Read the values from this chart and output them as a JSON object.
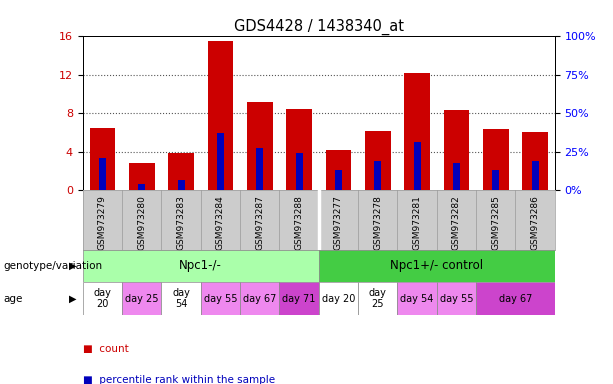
{
  "title": "GDS4428 / 1438340_at",
  "samples": [
    "GSM973279",
    "GSM973280",
    "GSM973283",
    "GSM973284",
    "GSM973287",
    "GSM973288",
    "GSM973277",
    "GSM973278",
    "GSM973281",
    "GSM973282",
    "GSM973285",
    "GSM973286"
  ],
  "bar_values": [
    6.5,
    2.8,
    3.9,
    15.5,
    9.2,
    8.4,
    4.2,
    6.2,
    12.2,
    8.3,
    6.4,
    6.1
  ],
  "percentile_values": [
    3.3,
    0.65,
    1.1,
    5.9,
    4.4,
    3.9,
    2.1,
    3.0,
    5.0,
    2.8,
    2.1,
    3.0
  ],
  "ylim": [
    0,
    16
  ],
  "yticks": [
    0,
    4,
    8,
    12,
    16
  ],
  "y2ticks": [
    0,
    25,
    50,
    75,
    100
  ],
  "y2labels": [
    "0%",
    "25%",
    "50%",
    "75%",
    "100%"
  ],
  "bar_color": "#cc0000",
  "percentile_color": "#0000bb",
  "genotype_groups": [
    {
      "label": "Npc1-/-",
      "start": 0,
      "end": 6,
      "color": "#aaffaa"
    },
    {
      "label": "Npc1+/- control",
      "start": 6,
      "end": 12,
      "color": "#44cc44"
    }
  ],
  "age_groups": [
    {
      "label": "day\n20",
      "start": 0,
      "end": 1,
      "color": "#ffffff"
    },
    {
      "label": "day 25",
      "start": 1,
      "end": 2,
      "color": "#ee88ee"
    },
    {
      "label": "day\n54",
      "start": 2,
      "end": 3,
      "color": "#ffffff"
    },
    {
      "label": "day 55",
      "start": 3,
      "end": 4,
      "color": "#ee88ee"
    },
    {
      "label": "day 67",
      "start": 4,
      "end": 5,
      "color": "#ee88ee"
    },
    {
      "label": "day 71",
      "start": 5,
      "end": 6,
      "color": "#cc44cc"
    },
    {
      "label": "day 20",
      "start": 6,
      "end": 7,
      "color": "#ffffff"
    },
    {
      "label": "day\n25",
      "start": 7,
      "end": 8,
      "color": "#ffffff"
    },
    {
      "label": "day 54",
      "start": 8,
      "end": 9,
      "color": "#ee88ee"
    },
    {
      "label": "day 55",
      "start": 9,
      "end": 10,
      "color": "#ee88ee"
    },
    {
      "label": "day 67",
      "start": 10,
      "end": 12,
      "color": "#cc44cc"
    }
  ],
  "left_label_genotype": "genotype/variation",
  "left_label_age": "age",
  "legend_items": [
    {
      "label": "count",
      "color": "#cc0000"
    },
    {
      "label": "percentile rank within the sample",
      "color": "#0000bb"
    }
  ],
  "grid_color": "#555555",
  "background_color": "#ffffff",
  "xticklabel_bg": "#cccccc"
}
